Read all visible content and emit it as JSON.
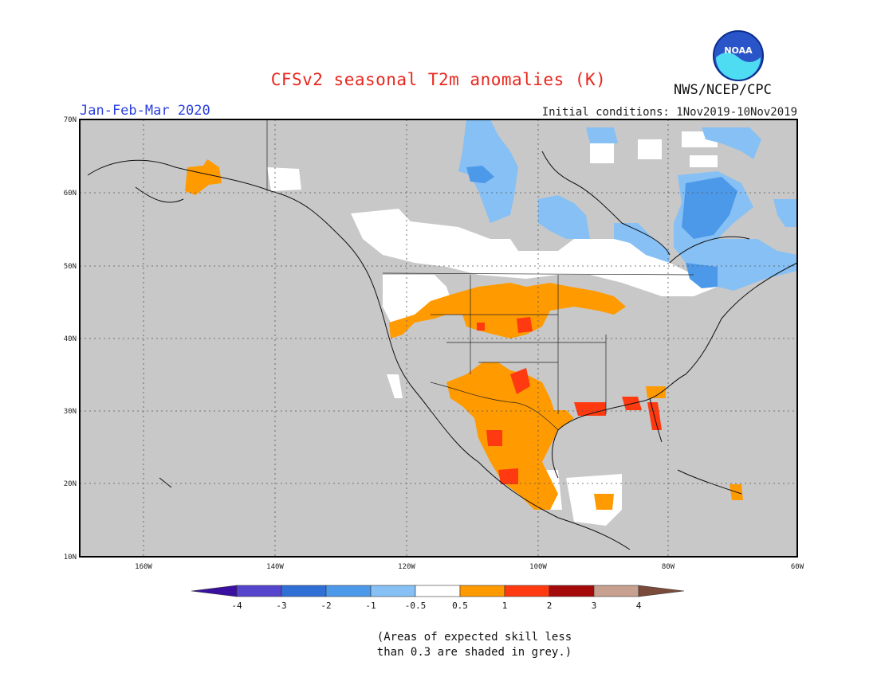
{
  "header": {
    "title": "CFSv2 seasonal T2m anomalies (K)",
    "period": "Jan-Feb-Mar 2020",
    "initial_conditions": "Initial conditions: 1Nov2019-10Nov2019",
    "organization": "NWS/NCEP/CPC",
    "logo_text": "NOAA"
  },
  "map": {
    "region": "North America",
    "lat_ticks": [
      "70N",
      "60N",
      "50N",
      "40N",
      "30N",
      "20N",
      "10N"
    ],
    "lon_ticks": [
      "160W",
      "140W",
      "120W",
      "100W",
      "80W",
      "60W"
    ],
    "colors": {
      "grey_low_skill": "#c8c8c8",
      "ocean": "#c8c8c8"
    }
  },
  "colorbar": {
    "labels": [
      "-4",
      "-3",
      "-2",
      "-1",
      "-0.5",
      "0.5",
      "1",
      "2",
      "3",
      "4"
    ],
    "colors": [
      "#3a10a0",
      "#5544cc",
      "#2f6fd6",
      "#4c99ea",
      "#86c0f4",
      "#ffffff",
      "#ff9a00",
      "#ff3a10",
      "#a50a0a",
      "#c7a08f",
      "#7a4a3a"
    ]
  },
  "footnote": {
    "line1": "(Areas of expected skill less",
    "line2": "than 0.3 are shaded in grey.)"
  }
}
